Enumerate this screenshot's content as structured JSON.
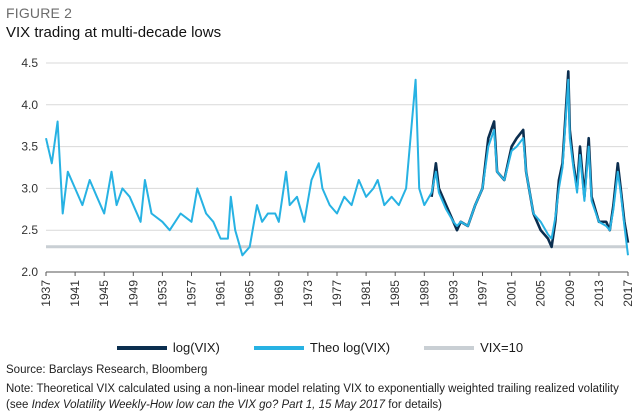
{
  "figure_label": "FIGURE 2",
  "title": "VIX trading at multi-decade lows",
  "source": "Source: Barclays Research, Bloomberg",
  "note": {
    "prefix": "Note: Theoretical VIX calculated using a non-linear model relating VIX to exponentially weighted trailing realized volatility (see ",
    "italic": "Index Volatility Weekly-How low can the VIX go? Part 1, 15 May 2017",
    "suffix": " for details)"
  },
  "chart_data": {
    "type": "line",
    "xlabel": "",
    "ylabel": "",
    "xlim": [
      1937,
      2017
    ],
    "ylim": [
      2.0,
      4.5
    ],
    "y_ticks": [
      "2.0",
      "2.5",
      "3.0",
      "3.5",
      "4.0",
      "4.5"
    ],
    "x_ticks": [
      "1937",
      "1941",
      "1945",
      "1949",
      "1953",
      "1957",
      "1961",
      "1965",
      "1969",
      "1973",
      "1977",
      "1981",
      "1985",
      "1989",
      "1993",
      "1997",
      "2001",
      "2005",
      "2009",
      "2013",
      "2017"
    ],
    "grid": "horizontal",
    "legend_position": "bottom",
    "series": [
      {
        "name": "log(VIX)",
        "color": "#0b2e4f",
        "x": [
          1990.0,
          1990.6,
          1991.0,
          1992.0,
          1993.0,
          1993.5,
          1994.0,
          1995.0,
          1996.0,
          1997.0,
          1997.8,
          1998.6,
          1999.0,
          2000.0,
          2001.0,
          2001.7,
          2002.6,
          2003.0,
          2004.0,
          2005.0,
          2006.0,
          2006.5,
          2007.0,
          2007.5,
          2008.0,
          2008.8,
          2009.0,
          2009.5,
          2010.0,
          2010.4,
          2011.0,
          2011.6,
          2012.0,
          2013.0,
          2014.0,
          2014.5,
          2015.0,
          2015.6,
          2016.0,
          2016.5,
          2017.0
        ],
        "values": [
          2.9,
          3.3,
          3.0,
          2.8,
          2.6,
          2.5,
          2.6,
          2.55,
          2.8,
          3.0,
          3.6,
          3.8,
          3.2,
          3.1,
          3.5,
          3.6,
          3.7,
          3.2,
          2.7,
          2.5,
          2.4,
          2.3,
          2.6,
          3.1,
          3.3,
          4.4,
          3.7,
          3.3,
          3.0,
          3.5,
          2.9,
          3.6,
          2.9,
          2.6,
          2.6,
          2.5,
          2.8,
          3.3,
          3.0,
          2.6,
          2.35
        ]
      },
      {
        "name": "Theo log(VIX)",
        "color": "#27b2e3",
        "x": [
          1937.0,
          1937.8,
          1938.6,
          1939.3,
          1940.0,
          1941.0,
          1942.0,
          1943.0,
          1944.0,
          1945.0,
          1946.0,
          1946.7,
          1947.5,
          1948.5,
          1950.0,
          1950.6,
          1951.5,
          1953.0,
          1954.0,
          1955.5,
          1957.0,
          1957.8,
          1959.0,
          1960.0,
          1961.0,
          1962.0,
          1962.4,
          1963.0,
          1964.0,
          1965.0,
          1966.0,
          1966.7,
          1967.5,
          1968.5,
          1969.0,
          1970.0,
          1970.5,
          1971.5,
          1972.5,
          1973.5,
          1974.5,
          1975.0,
          1976.0,
          1977.0,
          1978.0,
          1979.0,
          1980.0,
          1981.0,
          1982.0,
          1982.6,
          1983.5,
          1984.5,
          1985.5,
          1986.5,
          1987.8,
          1988.3,
          1989.0,
          1990.0,
          1990.6,
          1991.0,
          1992.0,
          1993.0,
          1993.5,
          1994.0,
          1995.0,
          1996.0,
          1997.0,
          1997.8,
          1998.6,
          1999.0,
          2000.0,
          2001.0,
          2001.7,
          2002.6,
          2003.0,
          2004.0,
          2005.0,
          2006.0,
          2006.5,
          2007.0,
          2007.5,
          2008.0,
          2008.8,
          2009.0,
          2009.5,
          2010.0,
          2010.4,
          2011.0,
          2011.6,
          2012.0,
          2013.0,
          2014.0,
          2014.5,
          2015.0,
          2015.6,
          2016.0,
          2016.5,
          2017.0
        ],
        "values": [
          3.6,
          3.3,
          3.8,
          2.7,
          3.2,
          3.0,
          2.8,
          3.1,
          2.9,
          2.7,
          3.2,
          2.8,
          3.0,
          2.9,
          2.6,
          3.1,
          2.7,
          2.6,
          2.5,
          2.7,
          2.6,
          3.0,
          2.7,
          2.6,
          2.4,
          2.4,
          2.9,
          2.5,
          2.2,
          2.3,
          2.8,
          2.6,
          2.7,
          2.7,
          2.6,
          3.2,
          2.8,
          2.9,
          2.6,
          3.1,
          3.3,
          3.0,
          2.8,
          2.7,
          2.9,
          2.8,
          3.1,
          2.9,
          3.0,
          3.1,
          2.8,
          2.9,
          2.8,
          3.0,
          4.3,
          3.0,
          2.8,
          2.95,
          3.2,
          2.95,
          2.75,
          2.6,
          2.55,
          2.6,
          2.55,
          2.8,
          3.0,
          3.5,
          3.7,
          3.2,
          3.1,
          3.45,
          3.5,
          3.6,
          3.2,
          2.7,
          2.6,
          2.45,
          2.4,
          2.65,
          3.0,
          3.25,
          4.3,
          3.6,
          3.25,
          2.95,
          3.4,
          2.85,
          3.5,
          2.85,
          2.6,
          2.55,
          2.5,
          2.75,
          3.2,
          2.95,
          2.55,
          2.2
        ]
      },
      {
        "name": "VIX=10",
        "color": "#c9cfd4",
        "x": [
          1937,
          2017
        ],
        "values": [
          2.303,
          2.303
        ]
      }
    ]
  }
}
